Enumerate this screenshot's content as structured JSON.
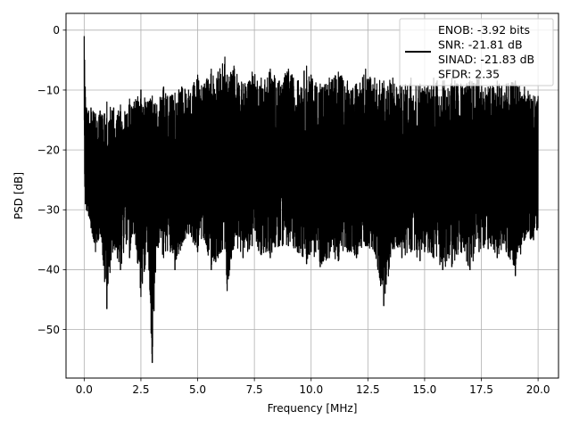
{
  "chart_data": {
    "type": "line",
    "xlabel": "Frequency [MHz]",
    "ylabel": "PSD [dB]",
    "xlim": [
      -0.8,
      20.9
    ],
    "ylim": [
      -58.1,
      2.8
    ],
    "xticks": [
      0.0,
      2.5,
      5.0,
      7.5,
      10.0,
      12.5,
      15.0,
      17.5,
      20.0
    ],
    "xtick_labels": [
      "0.0",
      "2.5",
      "5.0",
      "7.5",
      "10.0",
      "12.5",
      "15.0",
      "17.5",
      "20.0"
    ],
    "yticks": [
      0,
      -10,
      -20,
      -30,
      -40,
      -50
    ],
    "ytick_labels": [
      "0",
      "−10",
      "−20",
      "−30",
      "−40",
      "−50"
    ],
    "grid": true,
    "legend_position": "top-right",
    "line_color": "#000000",
    "series": [
      {
        "name": "ENOB: -3.92 bits\nSNR: -21.81 dB\nSINAD: -21.83 dB\nSFDR: 2.35",
        "x": [
          0.0,
          0.02,
          0.05,
          0.1,
          0.2,
          0.3,
          0.5,
          0.7,
          0.9,
          1.0,
          1.3,
          1.6,
          1.9,
          2.0,
          2.2,
          2.5,
          2.8,
          3.0,
          3.2,
          3.5,
          3.8,
          4.0,
          4.3,
          4.6,
          5.0,
          5.3,
          5.6,
          5.9,
          6.2,
          6.3,
          6.6,
          7.0,
          7.4,
          7.8,
          8.2,
          8.6,
          9.0,
          9.4,
          9.8,
          10.0,
          10.4,
          10.8,
          11.2,
          11.6,
          12.0,
          12.4,
          12.8,
          13.2,
          13.6,
          14.0,
          14.4,
          14.8,
          15.0,
          15.4,
          15.8,
          16.2,
          16.6,
          17.0,
          17.4,
          17.8,
          18.2,
          18.6,
          19.0,
          19.4,
          19.8,
          20.0
        ],
        "upper": [
          -1.0,
          -5.0,
          -9.5,
          -13.0,
          -13.5,
          -13.0,
          -14.0,
          -13.5,
          -14.0,
          -12.0,
          -13.0,
          -12.5,
          -14.0,
          -11.5,
          -12.0,
          -10.0,
          -12.0,
          -11.0,
          -12.5,
          -9.5,
          -11.0,
          -10.5,
          -9.5,
          -10.0,
          -7.5,
          -9.0,
          -6.5,
          -7.0,
          -4.5,
          -7.5,
          -6.0,
          -9.0,
          -7.0,
          -8.0,
          -6.5,
          -8.5,
          -6.5,
          -8.5,
          -6.0,
          -7.5,
          -9.0,
          -8.0,
          -7.0,
          -8.5,
          -9.0,
          -6.5,
          -8.0,
          -8.5,
          -8.0,
          -9.5,
          -8.0,
          -9.0,
          -9.5,
          -8.0,
          -8.5,
          -8.0,
          -9.0,
          -8.5,
          -8.0,
          -9.5,
          -8.5,
          -9.0,
          -8.5,
          -9.5,
          -11.0,
          -11.0
        ],
        "lower": [
          -15.0,
          -24.0,
          -29.0,
          -30.0,
          -31.0,
          -33.0,
          -37.0,
          -34.0,
          -42.0,
          -46.5,
          -36.0,
          -40.0,
          -35.0,
          -38.0,
          -34.0,
          -44.5,
          -37.0,
          -55.5,
          -36.0,
          -38.0,
          -37.0,
          -40.0,
          -36.0,
          -34.0,
          -37.0,
          -35.0,
          -40.0,
          -38.0,
          -36.5,
          -43.5,
          -36.0,
          -38.0,
          -36.0,
          -37.5,
          -38.0,
          -36.0,
          -36.0,
          -37.0,
          -39.0,
          -37.0,
          -39.5,
          -38.0,
          -38.5,
          -37.0,
          -38.0,
          -36.0,
          -37.0,
          -46.0,
          -36.5,
          -38.0,
          -37.0,
          -38.5,
          -37.0,
          -38.0,
          -40.0,
          -39.5,
          -37.0,
          -40.0,
          -37.0,
          -36.5,
          -38.0,
          -37.0,
          -41.0,
          -35.0,
          -35.0,
          -33.0
        ]
      }
    ]
  }
}
